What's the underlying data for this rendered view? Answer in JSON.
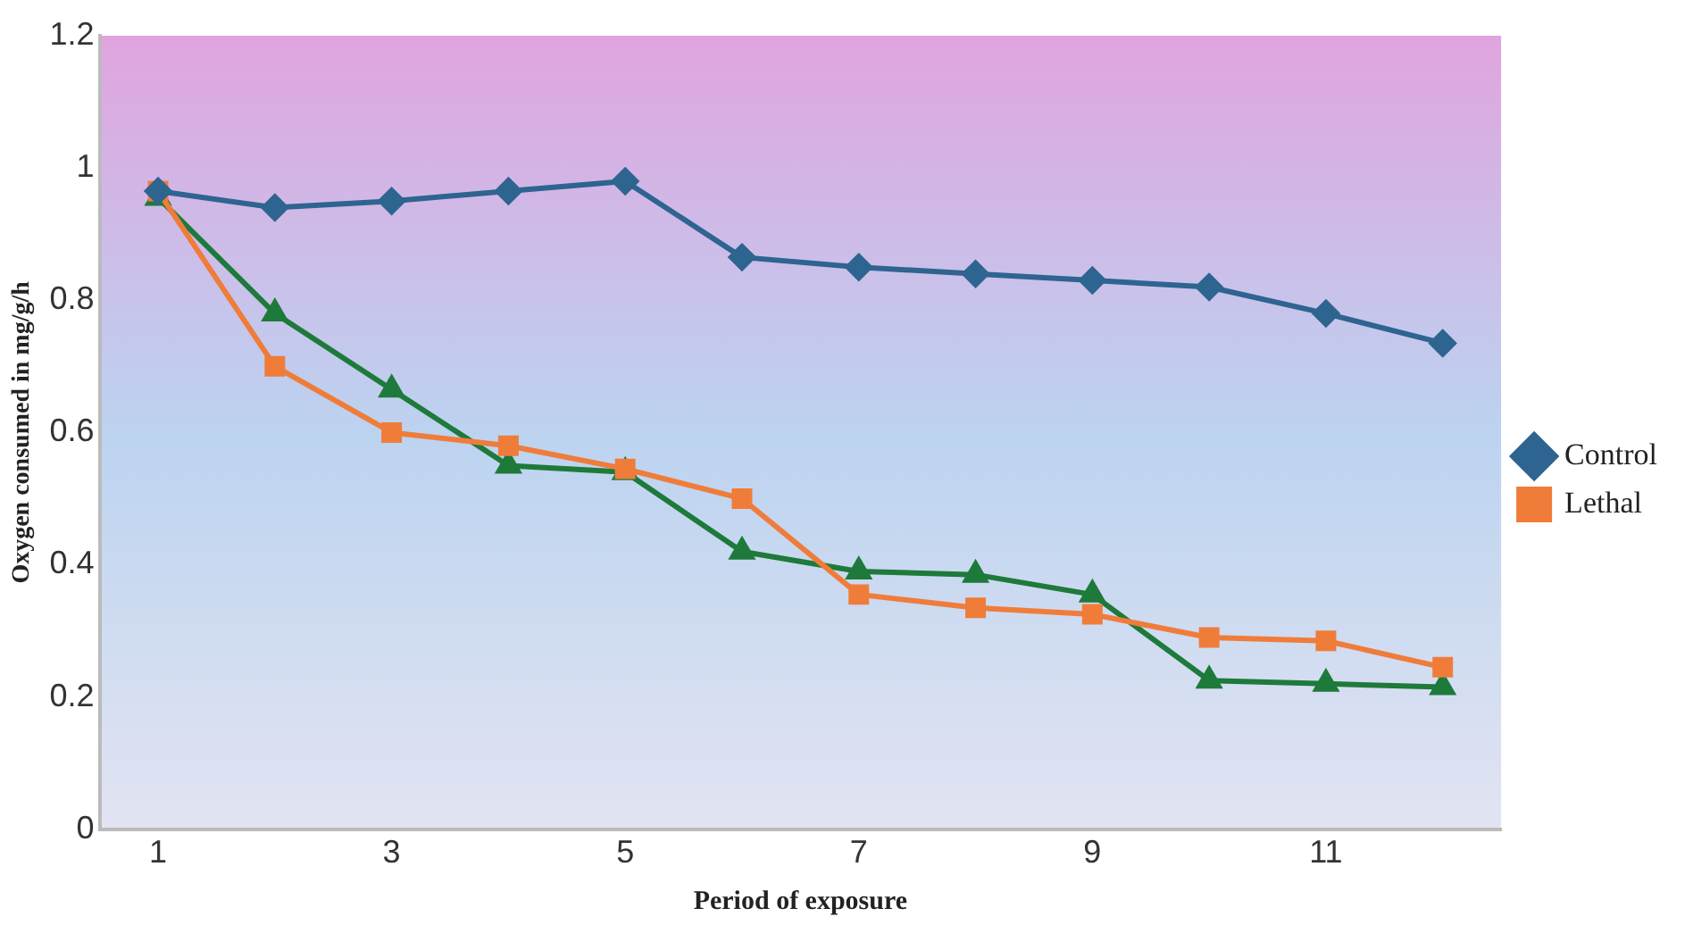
{
  "chart_data": {
    "type": "line",
    "xlabel": "Period of exposure",
    "ylabel": "Oxygen consumed in mg/g/h",
    "x": [
      1,
      2,
      3,
      4,
      5,
      6,
      7,
      8,
      9,
      10,
      11,
      12
    ],
    "xlim": [
      0.5,
      12.5
    ],
    "xticks": [
      1,
      3,
      5,
      7,
      9,
      11
    ],
    "ylim": [
      0,
      1.2
    ],
    "yticks": [
      0,
      0.2,
      0.4,
      0.6,
      0.8,
      1,
      1.2
    ],
    "grid": false,
    "legend": "right",
    "series": [
      {
        "name": "Control",
        "color": "#2e6490",
        "marker": "diamond",
        "values": [
          0.965,
          0.94,
          0.95,
          0.965,
          0.98,
          0.865,
          0.85,
          0.84,
          0.83,
          0.82,
          0.78,
          0.735
        ]
      },
      {
        "name": "Lethal",
        "color": "#f07c3a",
        "marker": "square",
        "values": [
          0.965,
          0.7,
          0.6,
          0.58,
          0.545,
          0.5,
          0.355,
          0.335,
          0.325,
          0.29,
          0.285,
          0.245
        ]
      },
      {
        "color": "#1e7a3a",
        "marker": "triangle",
        "values": [
          0.955,
          0.78,
          0.665,
          0.55,
          0.54,
          0.42,
          0.39,
          0.385,
          0.355,
          0.225,
          0.22,
          0.215
        ]
      }
    ]
  }
}
